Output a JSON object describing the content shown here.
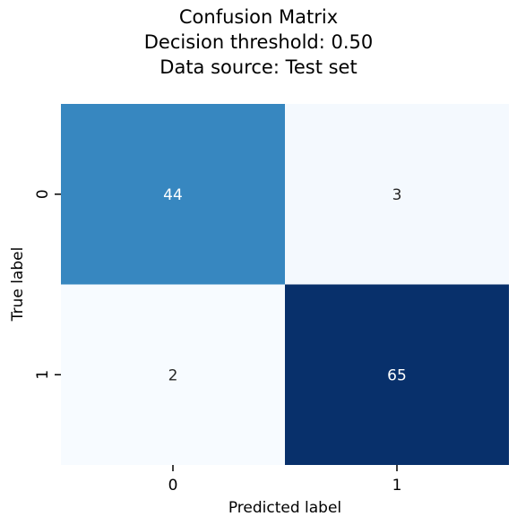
{
  "chart_data": {
    "type": "heatmap",
    "title_lines": [
      "Confusion Matrix",
      "Decision threshold: 0.50",
      "Data source: Test set"
    ],
    "xlabel": "Predicted label",
    "ylabel": "True label",
    "x_categories": [
      "0",
      "1"
    ],
    "y_categories": [
      "0",
      "1"
    ],
    "values": [
      [
        44,
        3
      ],
      [
        2,
        65
      ]
    ],
    "colormap": "Blues",
    "colors": {
      "low": "#f7fbff",
      "high": "#08306b",
      "text_dark": "#262626",
      "text_light": "#ffffff"
    },
    "colorbar": false,
    "grid": false
  }
}
